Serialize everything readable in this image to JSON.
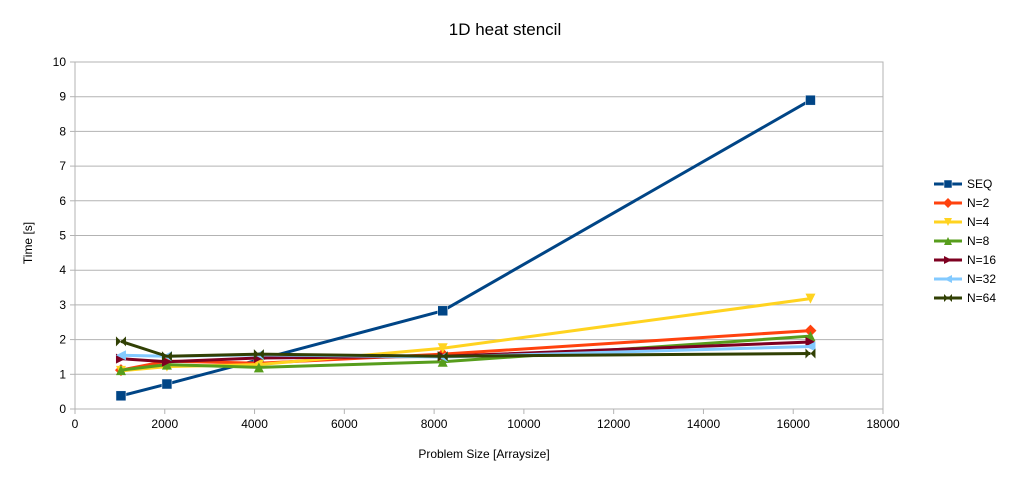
{
  "chart_data": {
    "type": "line",
    "title": "1D heat stencil",
    "xlabel": "Problem Size [Arraysize]",
    "ylabel": "Time [s]",
    "xlim": [
      0,
      18000
    ],
    "ylim": [
      0,
      10
    ],
    "xticks": [
      0,
      2000,
      4000,
      6000,
      8000,
      10000,
      12000,
      14000,
      16000,
      18000
    ],
    "yticks": [
      0,
      1,
      2,
      3,
      4,
      5,
      6,
      7,
      8,
      9,
      10
    ],
    "grid": "horizontal",
    "legend_position": "right",
    "x": [
      1024,
      2048,
      4096,
      8192,
      16384
    ],
    "series": [
      {
        "name": "SEQ",
        "color": "#004586",
        "marker": "square",
        "values": [
          0.38,
          0.72,
          1.42,
          2.83,
          8.9
        ]
      },
      {
        "name": "N=2",
        "color": "#ff420e",
        "marker": "diamond",
        "values": [
          1.12,
          1.38,
          1.32,
          1.58,
          2.26
        ]
      },
      {
        "name": "N=4",
        "color": "#ffd320",
        "marker": "triangle-down",
        "values": [
          1.1,
          1.22,
          1.28,
          1.75,
          3.18
        ]
      },
      {
        "name": "N=8",
        "color": "#579d1c",
        "marker": "triangle-up",
        "values": [
          1.12,
          1.28,
          1.2,
          1.36,
          2.1
        ]
      },
      {
        "name": "N=16",
        "color": "#7e0021",
        "marker": "triangle-right",
        "values": [
          1.45,
          1.36,
          1.47,
          1.52,
          1.93
        ]
      },
      {
        "name": "N=32",
        "color": "#83caff",
        "marker": "triangle-left",
        "values": [
          1.55,
          1.52,
          1.56,
          1.5,
          1.8
        ]
      },
      {
        "name": "N=64",
        "color": "#314004",
        "marker": "bowtie",
        "values": [
          1.95,
          1.52,
          1.58,
          1.52,
          1.6
        ]
      }
    ]
  }
}
